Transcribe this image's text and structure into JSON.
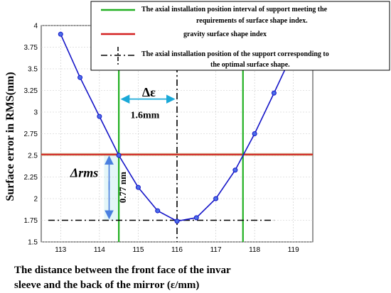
{
  "chart_data": {
    "type": "line",
    "title": "",
    "xlabel_line1": "The distance between the front face of the invar",
    "xlabel_line2": "sleeve  and the back of the mirror (ε/mm)",
    "ylabel": "Surface error in RMS(nm)",
    "xlim": [
      112.5,
      119.5
    ],
    "ylim": [
      1.5,
      4.0
    ],
    "xticks": [
      113,
      114,
      115,
      116,
      117,
      118,
      119
    ],
    "yticks": [
      1.5,
      1.75,
      2,
      2.25,
      2.5,
      2.75,
      3,
      3.25,
      3.5,
      3.75,
      4
    ],
    "series": [
      {
        "x": [
          113,
          113.5,
          114,
          114.5,
          115,
          115.5,
          116,
          116.5,
          117,
          117.5,
          118,
          118.5,
          119
        ],
        "y": [
          3.9,
          3.4,
          2.95,
          2.5,
          2.13,
          1.86,
          1.74,
          1.78,
          2.0,
          2.33,
          2.75,
          3.22,
          3.7
        ],
        "color": "#1515c8"
      }
    ],
    "gravity_index_y": 2.51,
    "optimal_y": 1.75,
    "interval_x": [
      114.5,
      117.7
    ],
    "optimal_x": 116,
    "legend": [
      {
        "label_line1": "The axial installation position interval of support meeting the",
        "label_line2": "requirements of surface shape index.",
        "color": "#22b022",
        "style": "solid"
      },
      {
        "label_line1": "gravity surface shape index",
        "label_line2": "",
        "color": "#d42020",
        "style": "solid"
      },
      {
        "label_line1": "The axial installation position of the support corresponding to",
        "label_line2": "the optimal surface shape.",
        "color": "#000000",
        "style": "dashdot"
      }
    ],
    "annotations": {
      "delta_epsilon": "Δε",
      "delta_epsilon_value": "1.6mm",
      "delta_rms": "Δrms",
      "delta_rms_value": "0.77 nm"
    }
  }
}
